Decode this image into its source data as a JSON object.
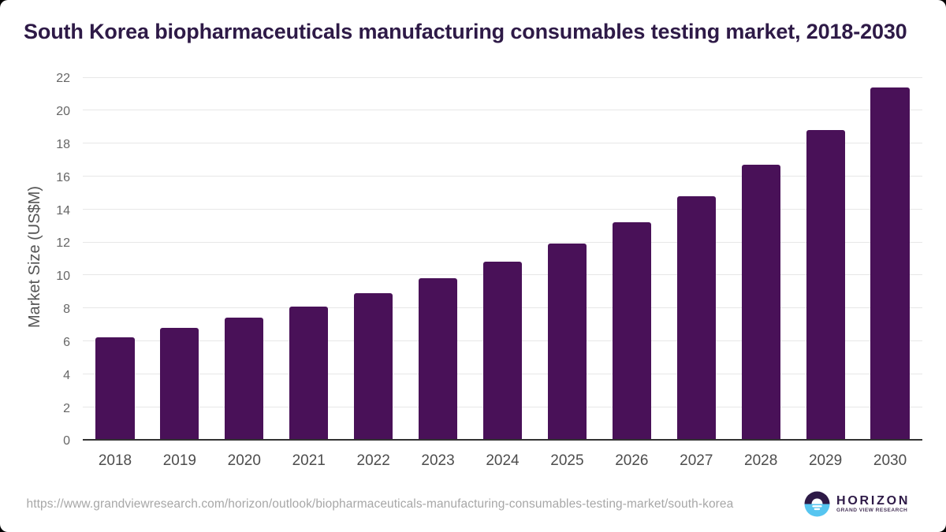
{
  "page": {
    "background_color": "#000000",
    "card_background_color": "#ffffff"
  },
  "chart_data": {
    "type": "bar",
    "title": "South Korea biopharmaceuticals manufacturing consumables testing market, 2018-2030",
    "xlabel": "",
    "ylabel": "Market Size (US$M)",
    "categories": [
      "2018",
      "2019",
      "2020",
      "2021",
      "2022",
      "2023",
      "2024",
      "2025",
      "2026",
      "2027",
      "2028",
      "2029",
      "2030"
    ],
    "values": [
      6.2,
      6.8,
      7.4,
      8.1,
      8.9,
      9.8,
      10.8,
      11.9,
      13.2,
      14.8,
      16.7,
      18.8,
      21.4
    ],
    "ylim": [
      0,
      22
    ],
    "ytick_step": 2,
    "grid": true,
    "legend_position": "none",
    "bar_color": "#491158",
    "title_color": "#2e1a47",
    "gridline_color": "#e7e7e7",
    "axis_line_color": "#333333",
    "ytick_color": "#666666",
    "xtick_color": "#4d4d4d",
    "ylabel_color": "#555555"
  },
  "footer": {
    "source_url": "https://www.grandviewresearch.com/horizon/outlook/biopharmaceuticals-manufacturing-consumables-testing-market/south-korea",
    "source_url_color": "#a7a7a7",
    "logo": {
      "brand": "HORIZON",
      "tagline": "GRAND VIEW RESEARCH",
      "brand_color": "#2e1a47",
      "tagline_color": "#473459",
      "icon": "sunset-horizon-icon",
      "icon_dark_color": "#2e1a47",
      "icon_blue_color": "#56c5f0"
    }
  }
}
